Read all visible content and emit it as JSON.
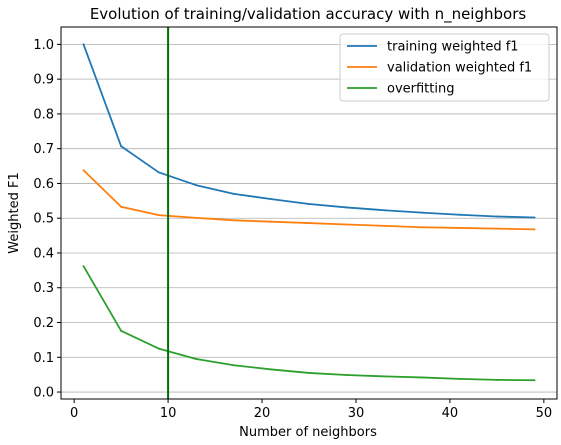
{
  "chart_data": {
    "type": "line",
    "title": "Evolution of training/validation accuracy with n_neighbors",
    "xlabel": "Number of neighbors",
    "ylabel": "Weighted F1",
    "xlim": [
      -1.4,
      51.4
    ],
    "ylim": [
      -0.02,
      1.05
    ],
    "xticks": [
      0,
      10,
      20,
      30,
      40,
      50
    ],
    "yticks": [
      0.0,
      0.1,
      0.2,
      0.3,
      0.4,
      0.5,
      0.6,
      0.7,
      0.8,
      0.9,
      1.0
    ],
    "xtick_labels": [
      "0",
      "10",
      "20",
      "30",
      "40",
      "50"
    ],
    "ytick_labels": [
      "0.0",
      "0.1",
      "0.2",
      "0.3",
      "0.4",
      "0.5",
      "0.6",
      "0.7",
      "0.8",
      "0.9",
      "1.0"
    ],
    "grid": "horizontal",
    "legend_position": "top-right",
    "x": [
      1,
      5,
      9,
      13,
      17,
      21,
      25,
      29,
      33,
      37,
      41,
      45,
      49
    ],
    "series": [
      {
        "name": "training weighted f1",
        "color": "#1f77b4",
        "values": [
          1.0,
          0.707,
          0.632,
          0.595,
          0.57,
          0.555,
          0.541,
          0.531,
          0.523,
          0.516,
          0.51,
          0.505,
          0.502
        ]
      },
      {
        "name": "validation weighted f1",
        "color": "#ff7f0e",
        "values": [
          0.638,
          0.533,
          0.509,
          0.501,
          0.494,
          0.49,
          0.486,
          0.482,
          0.478,
          0.474,
          0.472,
          0.47,
          0.468
        ]
      },
      {
        "name": "overfitting",
        "color": "#2ca02c",
        "values": [
          0.362,
          0.176,
          0.125,
          0.095,
          0.077,
          0.065,
          0.055,
          0.049,
          0.045,
          0.042,
          0.038,
          0.035,
          0.034
        ]
      }
    ],
    "vline": {
      "x": 10,
      "color": "#007000"
    }
  }
}
